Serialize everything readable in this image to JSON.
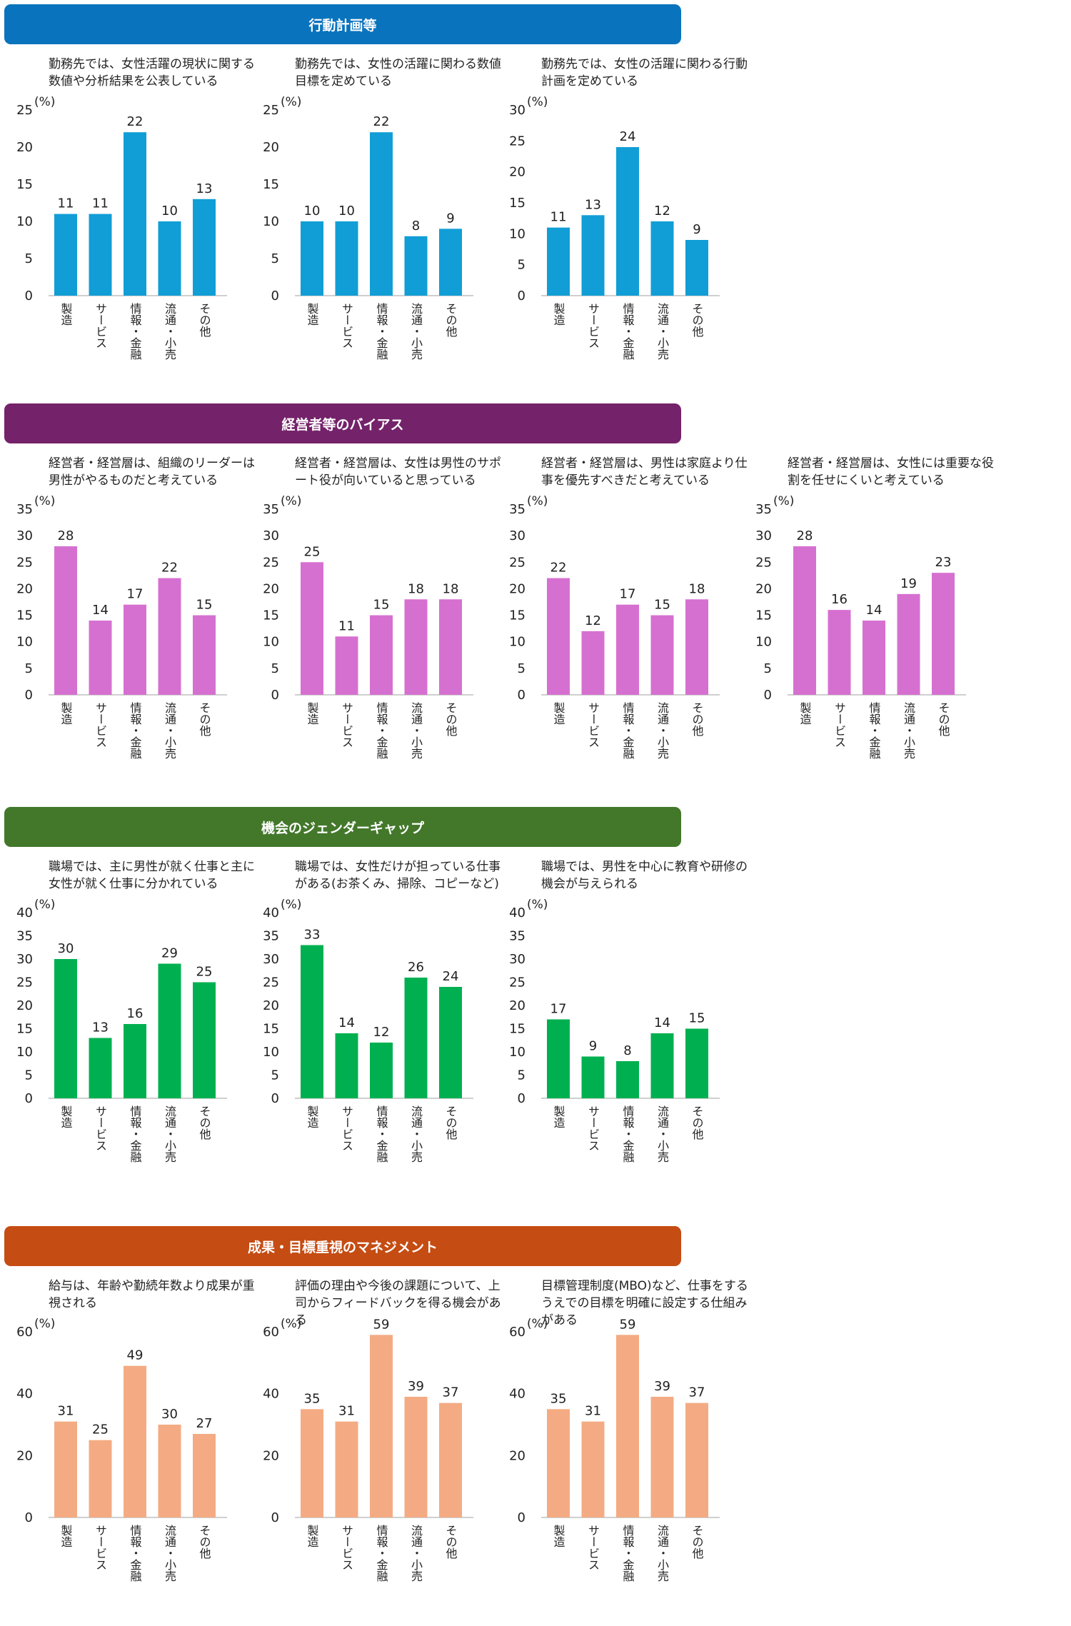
{
  "categories": [
    "製造",
    "サービス",
    "情報・金融",
    "流通・小売",
    "その他"
  ],
  "unit": "(%)",
  "sections": [
    {
      "title": "行動計画等",
      "band_color": "#0a73bd",
      "bar_color": "#119ed6",
      "ymax": 25,
      "ytick": 5,
      "charts": [
        {
          "caption": "勤務先では、女性活躍の現状に関する数値や分析結果を公表している",
          "chart_data": {
            "type": "bar",
            "categories": [
              "製造",
              "サービス",
              "情報・金融",
              "流通・小売",
              "その他"
            ],
            "values": [
              11,
              11,
              22,
              10,
              13
            ],
            "ylim": [
              0,
              25
            ]
          }
        },
        {
          "caption": "勤務先では、女性の活躍に関わる数値目標を定めている",
          "chart_data": {
            "type": "bar",
            "categories": [
              "製造",
              "サービス",
              "情報・金融",
              "流通・小売",
              "その他"
            ],
            "values": [
              10,
              10,
              22,
              8,
              9
            ],
            "ylim": [
              0,
              25
            ]
          }
        },
        {
          "caption": "勤務先では、女性の活躍に関わる行動計画を定めている",
          "chart_data": {
            "type": "bar",
            "categories": [
              "製造",
              "サービス",
              "情報・金融",
              "流通・小売",
              "その他"
            ],
            "values": [
              11,
              13,
              24,
              12,
              9
            ],
            "ylim": [
              0,
              30
            ]
          },
          "ymax": 30
        }
      ]
    },
    {
      "title": "経営者等のバイアス",
      "band_color": "#74226a",
      "bar_color": "#d670d0",
      "ymax": 35,
      "ytick": 5,
      "charts": [
        {
          "caption": "経営者・経営層は、組織のリーダーは男性がやるものだと考えている",
          "chart_data": {
            "type": "bar",
            "categories": [
              "製造",
              "サービス",
              "情報・金融",
              "流通・小売",
              "その他"
            ],
            "values": [
              28,
              14,
              17,
              22,
              15
            ],
            "ylim": [
              0,
              35
            ]
          }
        },
        {
          "caption": "経営者・経営層は、女性は男性のサポート役が向いていると思っている",
          "chart_data": {
            "type": "bar",
            "categories": [
              "製造",
              "サービス",
              "情報・金融",
              "流通・小売",
              "その他"
            ],
            "values": [
              25,
              11,
              15,
              18,
              18
            ],
            "ylim": [
              0,
              35
            ]
          }
        },
        {
          "caption": "経営者・経営層は、男性は家庭より仕事を優先すべきだと考えている",
          "chart_data": {
            "type": "bar",
            "categories": [
              "製造",
              "サービス",
              "情報・金融",
              "流通・小売",
              "その他"
            ],
            "values": [
              22,
              12,
              17,
              15,
              18
            ],
            "ylim": [
              0,
              35
            ]
          }
        },
        {
          "caption": "経営者・経営層は、女性には重要な役割を任せにくいと考えている",
          "chart_data": {
            "type": "bar",
            "categories": [
              "製造",
              "サービス",
              "情報・金融",
              "流通・小売",
              "その他"
            ],
            "values": [
              28,
              16,
              14,
              19,
              23
            ],
            "ylim": [
              0,
              35
            ]
          }
        }
      ]
    },
    {
      "title": "機会のジェンダーギャップ",
      "band_color": "#43782b",
      "bar_color": "#00b050",
      "ymax": 40,
      "ytick": 5,
      "charts": [
        {
          "caption": "職場では、主に男性が就く仕事と主に女性が就く仕事に分かれている",
          "chart_data": {
            "type": "bar",
            "categories": [
              "製造",
              "サービス",
              "情報・金融",
              "流通・小売",
              "その他"
            ],
            "values": [
              30,
              13,
              16,
              29,
              25
            ],
            "ylim": [
              0,
              40
            ]
          }
        },
        {
          "caption": "職場では、女性だけが担っている仕事がある(お茶くみ、掃除、コピーなど)",
          "chart_data": {
            "type": "bar",
            "categories": [
              "製造",
              "サービス",
              "情報・金融",
              "流通・小売",
              "その他"
            ],
            "values": [
              33,
              14,
              12,
              26,
              24
            ],
            "ylim": [
              0,
              40
            ]
          }
        },
        {
          "caption": "職場では、男性を中心に教育や研修の機会が与えられる",
          "chart_data": {
            "type": "bar",
            "categories": [
              "製造",
              "サービス",
              "情報・金融",
              "流通・小売",
              "その他"
            ],
            "values": [
              17,
              9,
              8,
              14,
              15
            ],
            "ylim": [
              0,
              40
            ]
          }
        }
      ]
    },
    {
      "title": "成果・目標重視のマネジメント",
      "band_color": "#c54c13",
      "bar_color": "#f4ab83",
      "ymax": 60,
      "ytick": 20,
      "charts": [
        {
          "caption": "給与は、年齢や勤続年数より成果が重視される",
          "chart_data": {
            "type": "bar",
            "categories": [
              "製造",
              "サービス",
              "情報・金融",
              "流通・小売",
              "その他"
            ],
            "values": [
              31,
              25,
              49,
              30,
              27
            ],
            "ylim": [
              0,
              60
            ]
          }
        },
        {
          "caption": "評価の理由や今後の課題について、上司からフィードバックを得る機会がある",
          "chart_data": {
            "type": "bar",
            "categories": [
              "製造",
              "サービス",
              "情報・金融",
              "流通・小売",
              "その他"
            ],
            "values": [
              35,
              31,
              59,
              39,
              37
            ],
            "ylim": [
              0,
              60
            ]
          }
        },
        {
          "caption": "目標管理制度(MBO)など、仕事をするうえでの目標を明確に設定する仕組みがある",
          "chart_data": {
            "type": "bar",
            "categories": [
              "製造",
              "サービス",
              "情報・金融",
              "流通・小売",
              "その他"
            ],
            "values": [
              35,
              31,
              59,
              39,
              37
            ],
            "ylim": [
              0,
              60
            ]
          }
        }
      ]
    }
  ]
}
